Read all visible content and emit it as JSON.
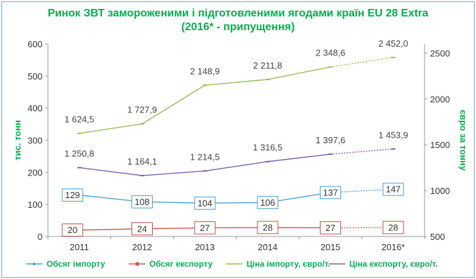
{
  "chart_data": {
    "type": "line",
    "title": "Ринок ЗВТ замороженими і підготовленими ягодами країн EU 28 Extra",
    "subtitle": "(2016* - припущення)",
    "categories": [
      "2011",
      "2012",
      "2013",
      "2014",
      "2015",
      "2016*"
    ],
    "ylabel_left": "тис. тонн",
    "ylabel_right": "євро за тонну",
    "ylim_left": [
      0,
      600
    ],
    "yticks_left": [
      "0",
      "100",
      "200",
      "300",
      "400",
      "500",
      "600"
    ],
    "ylim_right": [
      500,
      2600
    ],
    "yticks_right": [
      "500",
      "1000",
      "1500",
      "2000",
      "2500"
    ],
    "legend_position": "bottom",
    "grid": false,
    "series": [
      {
        "name": "Обсяг імпорту",
        "axis": "left",
        "color": "#4a9fd4",
        "values": [
          129,
          108,
          104,
          106,
          137,
          147
        ],
        "labels": [
          "129",
          "108",
          "104",
          "106",
          "137",
          "147"
        ],
        "label_style": "box",
        "box_color": "#4a9fd4"
      },
      {
        "name": "Обсяг експорту",
        "axis": "left",
        "color": "#d9534f",
        "values": [
          20,
          24,
          27,
          28,
          27,
          28
        ],
        "labels": [
          "20",
          "24",
          "27",
          "28",
          "27",
          "28"
        ],
        "label_style": "box",
        "box_color": "#c0504d"
      },
      {
        "name": "Ціна імпорту, євро/т.",
        "axis": "right",
        "color": "#9bbb59",
        "values": [
          1624.5,
          1727.9,
          2148.9,
          2211.8,
          2348.6,
          2452.0
        ],
        "labels": [
          "1 624,5",
          "1 727,9",
          "2 148,9",
          "2 211,8",
          "2 348,6",
          "2 452,0"
        ],
        "label_style": "text"
      },
      {
        "name": "Ціна експорту, євро/т.",
        "axis": "right",
        "color": "#7d5fa6",
        "values": [
          1250.8,
          1164.1,
          1214.5,
          1316.5,
          1397.6,
          1453.9
        ],
        "labels": [
          "1 250,8",
          "1 164,1",
          "1 214,5",
          "1 316,5",
          "1 397,6",
          "1 453,9"
        ],
        "label_style": "text"
      }
    ]
  }
}
